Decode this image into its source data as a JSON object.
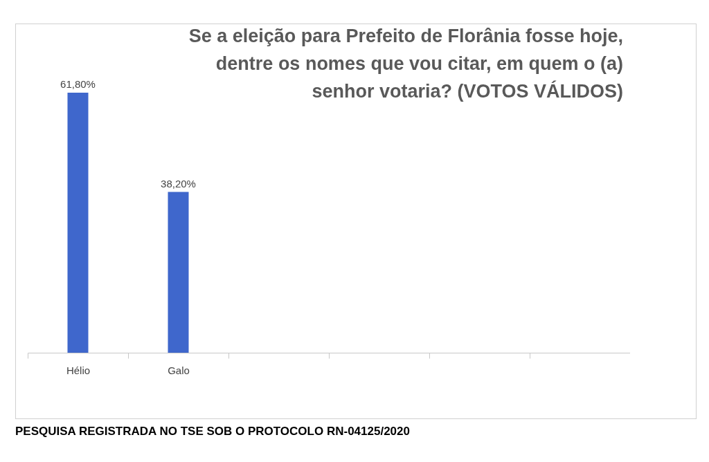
{
  "chart_data": {
    "type": "bar",
    "title": [
      "Se a eleição para Prefeito de Florânia fosse hoje,",
      "dentre os nomes que vou citar, em quem o (a)",
      "senhor votaria? (VOTOS VÁLIDOS)"
    ],
    "categories": [
      "Hélio",
      "Galo",
      null,
      null,
      null,
      null
    ],
    "values": [
      61.8,
      38.2,
      null,
      null,
      null,
      null
    ],
    "value_labels": [
      "61,80%",
      "38,20%",
      null,
      null,
      null,
      null
    ],
    "color": "#3f67cc",
    "annotations": [
      "PESQUISA REGISTRADA NO TSE SOB O PROTOCOLO RN-04125/2020"
    ]
  }
}
